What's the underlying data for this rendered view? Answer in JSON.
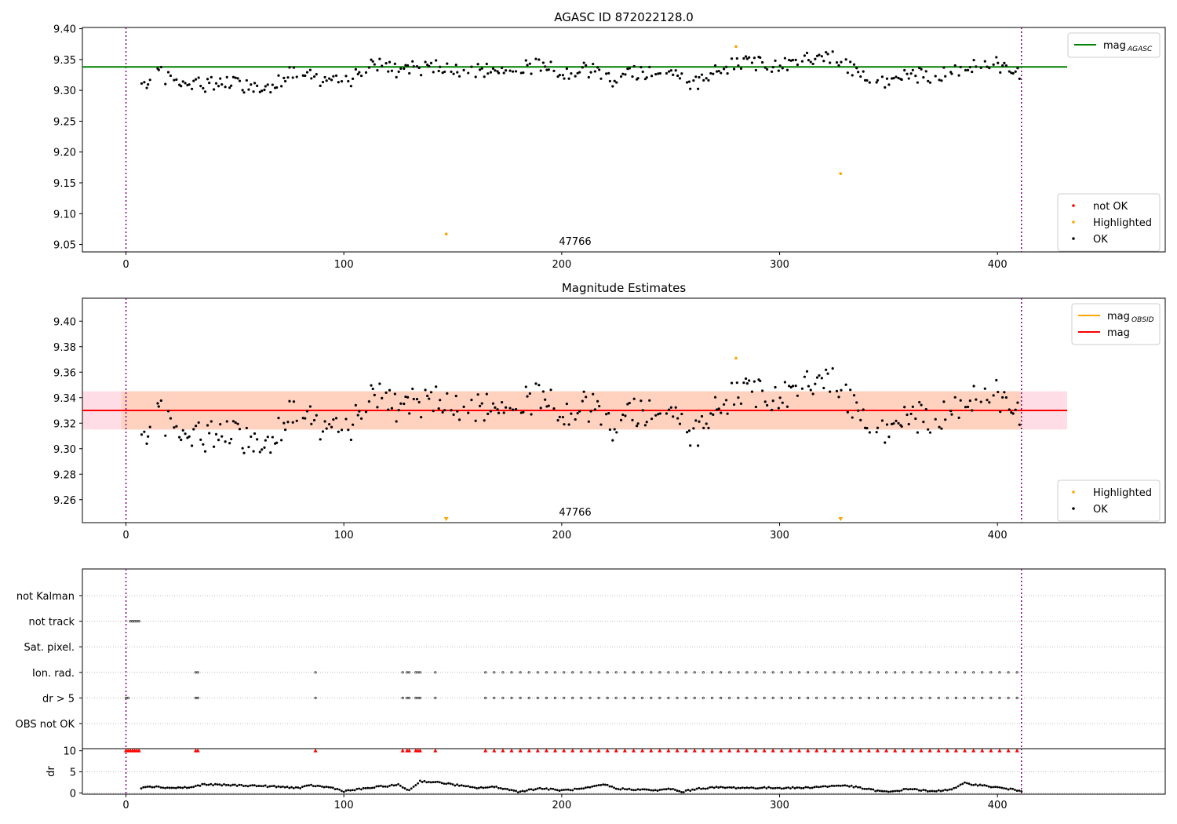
{
  "chart_data": [
    {
      "type": "scatter",
      "title": "AGASC ID 872022128.0",
      "xlim": [
        -20,
        477
      ],
      "ylim": [
        9.038,
        9.402
      ],
      "x_ticks": [
        0,
        100,
        200,
        300,
        400
      ],
      "y_ticks": [
        9.05,
        9.1,
        9.15,
        9.2,
        9.25,
        9.3,
        9.35,
        9.4
      ],
      "y_tick_labels": [
        "9.05",
        "9.10",
        "9.15",
        "9.20",
        "9.25",
        "9.30",
        "9.35",
        "9.40"
      ],
      "vlines": [
        0,
        411
      ],
      "annotation": "47766",
      "series": [
        {
          "name": "mag_AGASC",
          "kind": "hline",
          "value": 9.338,
          "x_range": [
            -20,
            432
          ],
          "color": "#008000"
        },
        {
          "name": "OK",
          "kind": "points",
          "noise_model": "obs_ok",
          "x_range": [
            7,
            411
          ],
          "color": "#000000"
        },
        {
          "name": "Highlighted",
          "kind": "points",
          "x": [
            147,
            280,
            328
          ],
          "y": [
            9.067,
            9.371,
            9.165
          ],
          "color": "#ffa500"
        },
        {
          "name": "not OK",
          "kind": "points",
          "x": [],
          "y": [],
          "color": "#ff0000"
        }
      ],
      "legends": [
        {
          "items": [
            {
              "label": "mag",
              "sub": "AGASC",
              "kind": "line",
              "color": "#008000"
            }
          ]
        },
        {
          "items": [
            {
              "label": "not OK",
              "kind": "dot",
              "color": "#ff0000"
            },
            {
              "label": "Highlighted",
              "kind": "dot",
              "color": "#ffa500"
            },
            {
              "label": "OK",
              "kind": "dot",
              "color": "#000000"
            }
          ]
        }
      ]
    },
    {
      "type": "scatter",
      "title": "Magnitude Estimates",
      "xlim": [
        -20,
        477
      ],
      "ylim": [
        9.242,
        9.418
      ],
      "x_ticks": [
        0,
        100,
        200,
        300,
        400
      ],
      "y_ticks": [
        9.26,
        9.28,
        9.3,
        9.32,
        9.34,
        9.36,
        9.38,
        9.4
      ],
      "y_tick_labels": [
        "9.26",
        "9.28",
        "9.30",
        "9.32",
        "9.34",
        "9.36",
        "9.38",
        "9.40"
      ],
      "vlines": [
        0,
        411
      ],
      "annotation": "47766",
      "band": {
        "y0": 9.315,
        "y1": 9.345,
        "x_range": [
          -20,
          432
        ],
        "band_color": "#ffdde6",
        "inner_color": "#ffd2c0",
        "inner_x_range": [
          -2,
          411
        ]
      },
      "series": [
        {
          "name": "mag_OBSID",
          "kind": "hline",
          "value": 9.33,
          "x_range": [
            -2,
            411
          ],
          "color": "#ffa500"
        },
        {
          "name": "mag",
          "kind": "hline",
          "value": 9.33,
          "x_range": [
            -20,
            432
          ],
          "color": "#ff0000"
        },
        {
          "name": "OK",
          "kind": "points",
          "noise_model": "obs_ok",
          "x_range": [
            7,
            411
          ],
          "color": "#000000"
        },
        {
          "name": "Highlighted",
          "kind": "points",
          "x": [
            280
          ],
          "y": [
            9.371
          ],
          "color": "#ffa500"
        },
        {
          "name": "Highlighted (off-scale)",
          "kind": "triangles",
          "x": [
            147,
            328
          ],
          "y": [
            9.244,
            9.244
          ],
          "color": "#ffa500"
        }
      ],
      "legends": [
        {
          "items": [
            {
              "label": "mag",
              "sub": "OBSID",
              "kind": "line",
              "color": "#ffa500"
            },
            {
              "label": "mag",
              "kind": "line",
              "color": "#ff0000"
            }
          ]
        },
        {
          "items": [
            {
              "label": "Highlighted",
              "kind": "dot",
              "color": "#ffa500"
            },
            {
              "label": "OK",
              "kind": "dot",
              "color": "#000000"
            }
          ]
        }
      ]
    },
    {
      "type": "scatter",
      "title": "",
      "xlim": [
        -20,
        477
      ],
      "flag_rows": [
        "not Kalman",
        "not track",
        "Sat. pixel.",
        "Ion. rad.",
        "dr > 5",
        "OBS not OK"
      ],
      "flags": {
        "not track": [
          2,
          3,
          4,
          5,
          6
        ],
        "Ion. rad.": [
          32,
          33,
          87,
          127,
          129,
          130,
          133,
          134,
          135,
          142,
          165,
          169,
          173,
          177,
          181,
          185,
          189,
          193,
          197,
          201,
          205,
          209,
          213,
          217,
          221,
          225,
          229,
          233,
          237,
          241,
          245,
          249,
          253,
          257,
          261,
          265,
          269,
          273,
          277,
          281,
          285,
          289,
          293,
          297,
          301,
          305,
          309,
          313,
          317,
          321,
          325,
          329,
          333,
          337,
          341,
          345,
          349,
          353,
          357,
          361,
          365,
          369,
          373,
          377,
          381,
          385,
          389,
          393,
          397,
          401,
          405,
          409
        ],
        "dr > 5": [
          0,
          1,
          32,
          33,
          87,
          127,
          129,
          130,
          133,
          134,
          135,
          142,
          165,
          169,
          173,
          177,
          181,
          185,
          189,
          193,
          197,
          201,
          205,
          209,
          213,
          217,
          221,
          225,
          229,
          233,
          237,
          241,
          245,
          249,
          253,
          257,
          261,
          265,
          269,
          273,
          277,
          281,
          285,
          289,
          293,
          297,
          301,
          305,
          309,
          313,
          317,
          321,
          325,
          329,
          333,
          337,
          341,
          345,
          349,
          353,
          357,
          361,
          365,
          369,
          373,
          377,
          381,
          385,
          389,
          393,
          397,
          401,
          405,
          409
        ]
      },
      "vlines": [
        0,
        411
      ],
      "x_tick_labels": [
        "0",
        "100",
        "200",
        "300",
        "400"
      ],
      "x_ticks": [
        0,
        100,
        200,
        300,
        400
      ]
    },
    {
      "type": "scatter",
      "title": "",
      "ylabel": "dr",
      "xlim": [
        -20,
        477
      ],
      "ylim": [
        -0.3,
        10.5
      ],
      "y_ticks": [
        0,
        5,
        10
      ],
      "y_tick_labels": [
        "0",
        "5",
        "10"
      ],
      "x_ticks": [
        0,
        100,
        200,
        300,
        400
      ],
      "x_tick_labels": [
        "0",
        "100",
        "200",
        "300",
        "400"
      ],
      "vlines": [
        0,
        411
      ],
      "dr_clip_value": 10,
      "dr_clipped_x": [
        0,
        1,
        2,
        3,
        4,
        5,
        6,
        32,
        33,
        87,
        127,
        129,
        130,
        133,
        134,
        135,
        142,
        165,
        169,
        173,
        177,
        181,
        185,
        189,
        193,
        197,
        201,
        205,
        209,
        213,
        217,
        221,
        225,
        229,
        233,
        237,
        241,
        245,
        249,
        253,
        257,
        261,
        265,
        269,
        273,
        277,
        281,
        285,
        289,
        293,
        297,
        301,
        305,
        309,
        313,
        317,
        321,
        325,
        329,
        333,
        337,
        341,
        345,
        349,
        353,
        357,
        361,
        365,
        369,
        373,
        377,
        381,
        385,
        389,
        393,
        397,
        401,
        405,
        409
      ],
      "dr_profile": [
        [
          7,
          1.2
        ],
        [
          10,
          1.6
        ],
        [
          20,
          1.2
        ],
        [
          30,
          1.3
        ],
        [
          35,
          2.0
        ],
        [
          60,
          1.7
        ],
        [
          80,
          1.2
        ],
        [
          85,
          1.8
        ],
        [
          95,
          1.2
        ],
        [
          100,
          0.4
        ],
        [
          115,
          1.4
        ],
        [
          125,
          1.9
        ],
        [
          130,
          0.6
        ],
        [
          135,
          2.8
        ],
        [
          145,
          2.4
        ],
        [
          160,
          1.2
        ],
        [
          170,
          1.4
        ],
        [
          180,
          0.3
        ],
        [
          190,
          1.1
        ],
        [
          200,
          0.6
        ],
        [
          210,
          1.0
        ],
        [
          220,
          2.0
        ],
        [
          225,
          1.0
        ],
        [
          245,
          0.6
        ],
        [
          250,
          1.0
        ],
        [
          255,
          0.2
        ],
        [
          262,
          1.0
        ],
        [
          270,
          1.3
        ],
        [
          285,
          1.2
        ],
        [
          310,
          1.2
        ],
        [
          330,
          1.8
        ],
        [
          345,
          0.5
        ],
        [
          350,
          0.2
        ],
        [
          360,
          1.0
        ],
        [
          370,
          0.3
        ],
        [
          380,
          1.0
        ],
        [
          385,
          2.3
        ],
        [
          400,
          1.3
        ],
        [
          411,
          0.5
        ]
      ]
    }
  ]
}
